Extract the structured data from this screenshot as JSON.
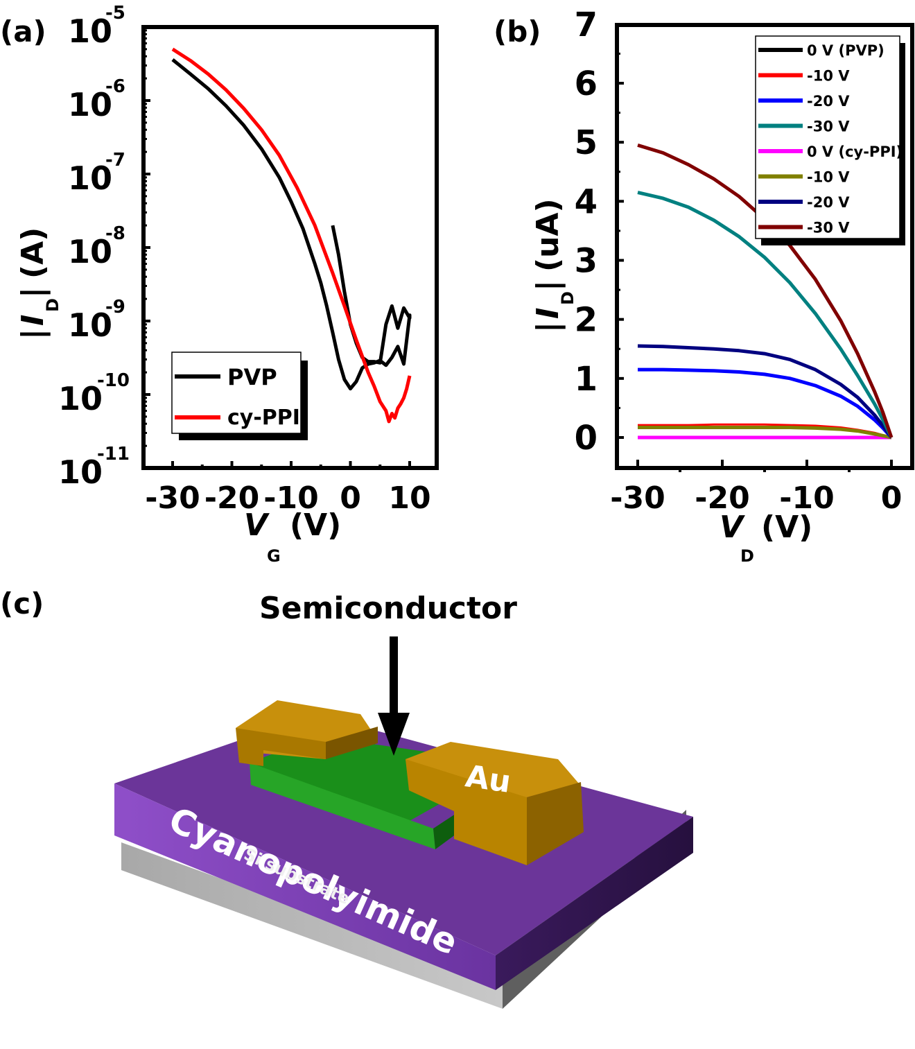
{
  "panels": {
    "a": {
      "tag": "(a)"
    },
    "b": {
      "tag": "(b)"
    },
    "c": {
      "tag": "(c)"
    }
  },
  "chart_data": [
    {
      "id": "a",
      "type": "line",
      "title": "",
      "xlabel": "V_G (V)",
      "xlabel_main": "V",
      "xlabel_sub": "G",
      "xlabel_unit": "(V)",
      "ylabel": "|I_D| (A)",
      "ylabel_main": "I",
      "ylabel_sub": "D",
      "ylabel_unit": "(A)",
      "yscale": "log",
      "xlim": [
        -35,
        14
      ],
      "ylim": [
        1e-11,
        1e-05
      ],
      "xticks": [
        -30,
        -20,
        -10,
        0,
        10
      ],
      "xtick_labels": [
        "-30",
        "-20",
        "-10",
        "0",
        "10"
      ],
      "yticks_exp": [
        -5,
        -6,
        -7,
        -8,
        -9,
        -10,
        -11
      ],
      "ytick_base": "10",
      "grid": false,
      "legend": {
        "position": "bottom-left",
        "entries": [
          "PVP",
          "cy-PPI"
        ]
      },
      "series": [
        {
          "name": "PVP",
          "color": "#000000",
          "x": [
            -30,
            -27,
            -24,
            -21,
            -18,
            -15,
            -12,
            -10,
            -8,
            -6,
            -5,
            -4,
            -3,
            -2,
            -1,
            0,
            1,
            2,
            3,
            4,
            5,
            6,
            7,
            8,
            9,
            10,
            10,
            9,
            8,
            7,
            6,
            5,
            4,
            3,
            2,
            1,
            0,
            -1,
            -2,
            -3
          ],
          "y": [
            3.6e-06,
            2.3e-06,
            1.45e-06,
            8.5e-07,
            4.6e-07,
            2.2e-07,
            9e-08,
            4.2e-08,
            1.8e-08,
            6e-09,
            3.3e-09,
            1.6e-09,
            7e-10,
            3e-10,
            1.6e-10,
            1.2e-10,
            1.5e-10,
            2.3e-10,
            2.6e-10,
            2.7e-10,
            2.9e-10,
            2.5e-10,
            3.2e-10,
            4.5e-10,
            2.6e-10,
            1.2e-09,
            1.1e-09,
            1.5e-09,
            8e-10,
            1.6e-09,
            9e-10,
            2.7e-10,
            2.8e-10,
            2.8e-10,
            3.2e-10,
            5e-10,
            9e-10,
            2.5e-09,
            8e-09,
            2e-08
          ]
        },
        {
          "name": "cy-PPI",
          "color": "#ff0000",
          "x": [
            -30,
            -27,
            -24,
            -21,
            -18,
            -15,
            -12,
            -9,
            -6,
            -3,
            -1,
            1,
            3,
            4,
            5,
            6,
            6.5,
            7,
            7.5,
            8,
            8.5,
            9,
            9.5,
            10
          ],
          "y": [
            5e-06,
            3.5e-06,
            2.3e-06,
            1.4e-06,
            7.8e-07,
            4e-07,
            1.8e-07,
            6.5e-08,
            2e-08,
            4.5e-09,
            1.6e-09,
            5.5e-10,
            2e-10,
            1.3e-10,
            8e-11,
            6e-11,
            4.3e-11,
            5.5e-11,
            4.8e-11,
            6.5e-11,
            7.5e-11,
            9e-11,
            1.2e-10,
            1.8e-10
          ]
        }
      ]
    },
    {
      "id": "b",
      "type": "line",
      "title": "",
      "xlabel": "V_D (V)",
      "xlabel_main": "V",
      "xlabel_sub": "D",
      "xlabel_unit": "(V)",
      "ylabel": "|I_D| (uA)",
      "ylabel_main": "I",
      "ylabel_sub": "D",
      "ylabel_unit": "(uA)",
      "xlim": [
        -32.5,
        2.5
      ],
      "ylim": [
        -0.5,
        7
      ],
      "xticks": [
        -30,
        -20,
        -10,
        0
      ],
      "xtick_labels": [
        "-30",
        "-20",
        "-10",
        "0"
      ],
      "yticks": [
        0,
        1,
        2,
        3,
        4,
        5,
        6,
        7
      ],
      "ytick_labels": [
        "0",
        "1",
        "2",
        "3",
        "4",
        "5",
        "6",
        "7"
      ],
      "grid": false,
      "legend": {
        "position": "top-right",
        "entries": [
          "0 V (PVP)",
          "-10 V",
          "-20 V",
          "-30 V",
          "0 V (cy-PPI)",
          "-10 V",
          "-20 V",
          "-30 V"
        ]
      },
      "x": [
        -30,
        -27,
        -24,
        -21,
        -18,
        -15,
        -12,
        -9,
        -6,
        -4,
        -2,
        -1,
        0
      ],
      "series": [
        {
          "name": "0 V (PVP)",
          "color": "#000000",
          "values": [
            0.0,
            0.0,
            0.0,
            0.0,
            0.0,
            0.0,
            0.0,
            0.0,
            0.0,
            0.0,
            0.0,
            0.0,
            0.0
          ]
        },
        {
          "name": "-10 V",
          "color": "#ff0000",
          "values": [
            0.21,
            0.21,
            0.21,
            0.22,
            0.22,
            0.22,
            0.21,
            0.2,
            0.17,
            0.13,
            0.08,
            0.04,
            0.0
          ]
        },
        {
          "name": "-20 V",
          "color": "#0000ff",
          "values": [
            1.15,
            1.15,
            1.14,
            1.13,
            1.11,
            1.07,
            1.0,
            0.88,
            0.7,
            0.53,
            0.3,
            0.16,
            0.0
          ]
        },
        {
          "name": "-30 V",
          "color": "#008080",
          "values": [
            4.15,
            4.05,
            3.9,
            3.68,
            3.4,
            3.05,
            2.62,
            2.1,
            1.5,
            1.05,
            0.57,
            0.3,
            0.0
          ]
        },
        {
          "name": "0 V (cy-PPI)",
          "color": "#ff00ff",
          "values": [
            0.0,
            0.0,
            0.0,
            0.0,
            0.0,
            0.0,
            0.0,
            0.0,
            0.0,
            0.0,
            0.0,
            0.0,
            0.0
          ]
        },
        {
          "name": "-10 V",
          "color": "#808000",
          "values": [
            0.17,
            0.17,
            0.17,
            0.17,
            0.17,
            0.17,
            0.17,
            0.16,
            0.14,
            0.11,
            0.06,
            0.03,
            0.0
          ]
        },
        {
          "name": "-20 V",
          "color": "#000080",
          "values": [
            1.55,
            1.54,
            1.52,
            1.5,
            1.47,
            1.42,
            1.32,
            1.15,
            0.9,
            0.68,
            0.38,
            0.2,
            0.0
          ]
        },
        {
          "name": "-30 V",
          "color": "#800000",
          "values": [
            4.95,
            4.82,
            4.62,
            4.38,
            4.08,
            3.7,
            3.25,
            2.68,
            1.98,
            1.42,
            0.78,
            0.42,
            0.0
          ]
        }
      ]
    }
  ],
  "diagram": {
    "arrow_label": "Semiconductor",
    "electrode_label": "Au",
    "dielectric_label": "Cyanopolyimide",
    "substrate_label": "Si substrate",
    "colors": {
      "gold": "#c8900c",
      "gold_dark": "#9a6a00",
      "green": "#1f9a1f",
      "green_dark": "#0f6b0f",
      "purple_top": "#7a3fb0",
      "purple_front": "#8a48c4",
      "purple_side": "#4a2272",
      "gray": "#b5b5b5",
      "gray_dark": "#6f6f6f"
    }
  }
}
